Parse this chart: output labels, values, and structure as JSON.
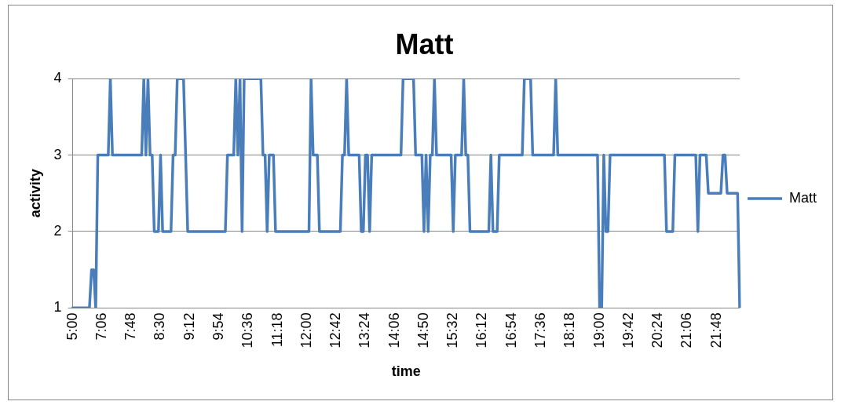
{
  "chart_data": {
    "type": "line",
    "title": "Matt",
    "xlabel": "time",
    "ylabel": "activity",
    "categories": [
      "5:00",
      null,
      null,
      null,
      null,
      null,
      null,
      null,
      null,
      null,
      null,
      null,
      null,
      null,
      "7:06",
      null,
      null,
      null,
      null,
      null,
      null,
      null,
      null,
      null,
      null,
      null,
      null,
      null,
      "7:48",
      null,
      null,
      null,
      null,
      null,
      null,
      null,
      null,
      null,
      null,
      null,
      null,
      null,
      "8:30",
      null,
      null,
      null,
      null,
      null,
      null,
      null,
      null,
      null,
      null,
      null,
      null,
      null,
      "9:12",
      null,
      null,
      null,
      null,
      null,
      null,
      null,
      null,
      null,
      null,
      null,
      null,
      null,
      "9:54",
      null,
      null,
      null,
      null,
      null,
      null,
      null,
      null,
      null,
      null,
      null,
      null,
      null,
      "10:36",
      null,
      null,
      null,
      null,
      null,
      null,
      null,
      null,
      null,
      null,
      null,
      null,
      null,
      "11:18",
      null,
      null,
      null,
      null,
      null,
      null,
      null,
      null,
      null,
      null,
      null,
      null,
      null,
      "12:00",
      null,
      null,
      null,
      null,
      null,
      null,
      null,
      null,
      null,
      null,
      null,
      null,
      null,
      "12:42",
      null,
      null,
      null,
      null,
      null,
      null,
      null,
      null,
      null,
      null,
      null,
      null,
      null,
      "13:24",
      null,
      null,
      null,
      null,
      null,
      null,
      null,
      null,
      null,
      null,
      null,
      null,
      null,
      "14:06",
      null,
      null,
      null,
      null,
      null,
      null,
      null,
      null,
      null,
      null,
      null,
      null,
      null,
      "14:50",
      null,
      null,
      null,
      null,
      null,
      null,
      null,
      null,
      null,
      null,
      null,
      null,
      null,
      "15:32",
      null,
      null,
      null,
      null,
      null,
      null,
      null,
      null,
      null,
      null,
      null,
      null,
      null,
      "16:12",
      null,
      null,
      null,
      null,
      null,
      null,
      null,
      null,
      null,
      null,
      null,
      null,
      null,
      "16:54",
      null,
      null,
      null,
      null,
      null,
      null,
      null,
      null,
      null,
      null,
      null,
      null,
      null,
      "17:36",
      null,
      null,
      null,
      null,
      null,
      null,
      null,
      null,
      null,
      null,
      null,
      null,
      null,
      "18:18",
      null,
      null,
      null,
      null,
      null,
      null,
      null,
      null,
      null,
      null,
      null,
      null,
      null,
      "19:00",
      null,
      null,
      null,
      null,
      null,
      null,
      null,
      null,
      null,
      null,
      null,
      null,
      null,
      "19:42",
      null,
      null,
      null,
      null,
      null,
      null,
      null,
      null,
      null,
      null,
      null,
      null,
      null,
      "20:24",
      null,
      null,
      null,
      null,
      null,
      null,
      null,
      null,
      null,
      null,
      null,
      null,
      null,
      "21:06",
      null,
      null,
      null,
      null,
      null,
      null,
      null,
      null,
      null,
      null,
      null,
      null,
      null,
      "21:48",
      null,
      null,
      null,
      null,
      null,
      null,
      null,
      null,
      null,
      null,
      null
    ],
    "series": [
      {
        "name": "Matt",
        "color": "#4a7ebb",
        "values": [
          1,
          1,
          1,
          1,
          1,
          1,
          1,
          1,
          1,
          1.5,
          1.5,
          1,
          3,
          3,
          3,
          3,
          3,
          3,
          4,
          3,
          3,
          3,
          3,
          3,
          3,
          3,
          3,
          3,
          3,
          3,
          3,
          3,
          3,
          3,
          4,
          3,
          4,
          3,
          3,
          2,
          2,
          2,
          3,
          2,
          2,
          2,
          2,
          2,
          3,
          3,
          4,
          4,
          4,
          4,
          3,
          2,
          2,
          2,
          2,
          2,
          2,
          2,
          2,
          2,
          2,
          2,
          2,
          2,
          2,
          2,
          2,
          2,
          2,
          2,
          3,
          3,
          3,
          3,
          4,
          3,
          4,
          2,
          4,
          4,
          4,
          4,
          4,
          4,
          4,
          4,
          4,
          3,
          3,
          2,
          3,
          3,
          3,
          2,
          2,
          2,
          2,
          2,
          2,
          2,
          2,
          2,
          2,
          2,
          2,
          2,
          2,
          2,
          2,
          2,
          4,
          3,
          3,
          3,
          2,
          2,
          2,
          2,
          2,
          2,
          2,
          2,
          2,
          2,
          2,
          3,
          3,
          4,
          3,
          3,
          3,
          3,
          3,
          3,
          2,
          2,
          3,
          3,
          2,
          3,
          3,
          3,
          3,
          3,
          3,
          3,
          3,
          3,
          3,
          3,
          3,
          3,
          3,
          3,
          4,
          4,
          4,
          4,
          4,
          4,
          3,
          3,
          3,
          3,
          2,
          3,
          2,
          3,
          3,
          4,
          3,
          3,
          3,
          3,
          3,
          3,
          3,
          3,
          2,
          3,
          3,
          3,
          3,
          4,
          3,
          3,
          2,
          2,
          2,
          2,
          2,
          2,
          2,
          2,
          2,
          2,
          3,
          2,
          2,
          2,
          3,
          3,
          3,
          3,
          3,
          3,
          3,
          3,
          3,
          3,
          3,
          3,
          4,
          4,
          4,
          4,
          3,
          3,
          3,
          3,
          3,
          3,
          3,
          3,
          3,
          3,
          3,
          4,
          3,
          3,
          3,
          3,
          3,
          3,
          3,
          3,
          3,
          3,
          3,
          3,
          3,
          3,
          3,
          3,
          3,
          3,
          3,
          3,
          1,
          1,
          3,
          2,
          2,
          3,
          3,
          3,
          3,
          3,
          3,
          3,
          3,
          3,
          3,
          3,
          3,
          3,
          3,
          3,
          3,
          3,
          3,
          3,
          3,
          3,
          3,
          3,
          3,
          3,
          3,
          3,
          2,
          2,
          2,
          2,
          3,
          3,
          3,
          3,
          3,
          3,
          3,
          3,
          3,
          3,
          3,
          2,
          3,
          3,
          3,
          3,
          2.5,
          2.5,
          2.5,
          2.5,
          2.5,
          2.5,
          2.5,
          3,
          3,
          2.5,
          2.5,
          2.5,
          2.5,
          2.5,
          2.5,
          1
        ]
      }
    ],
    "ylim": [
      1,
      4
    ],
    "yticks": [
      1,
      2,
      3,
      4
    ],
    "grid": "y",
    "legend": "right",
    "line_style": "solid"
  }
}
